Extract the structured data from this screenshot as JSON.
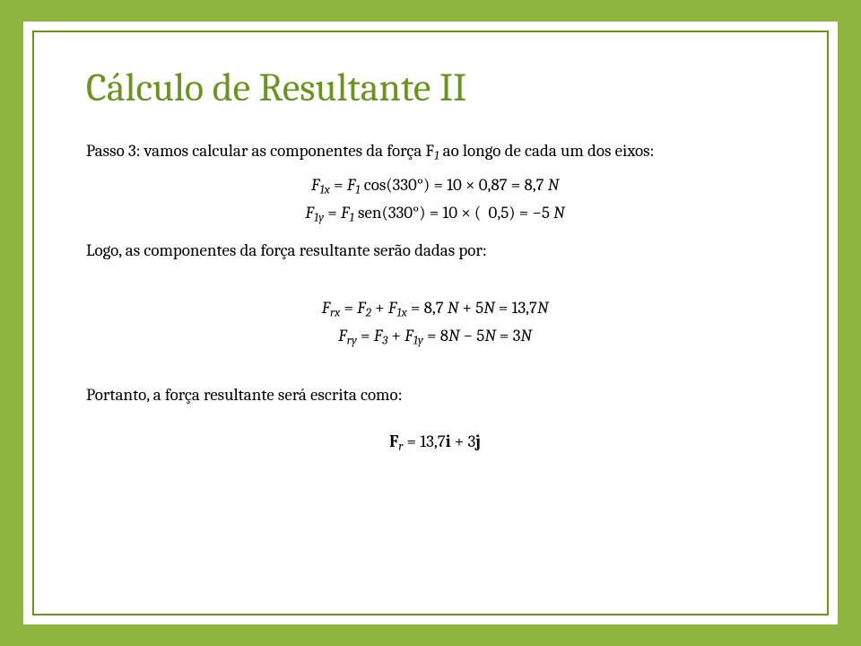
{
  "title": "Cálculo de Resultante II",
  "step_intro": "Passo 3: vamos calcular as componentes da força F₁ ao longo de cada um dos eixos:",
  "eq_f1x": "F₁ₓ = F₁ cos(330°) = 10 × 0,87 = 8,7 N",
  "eq_f1y": "F₁ᵧ = F₁ sen(330°) = 10 × (−0,5) = −5 N",
  "logo_text": "Logo, as componentes da força resultante serão dadas por:",
  "eq_frx": "Fᵣₓ = F₂ + F₁ₓ = 8,7 N + 5N = 13,7N",
  "eq_fry": "Fᵣᵧ = F₃ + F₁ᵧ = 8N − 5N = 3N",
  "portanto_text": "Portanto, a força resultante será escrita como:",
  "eq_final": "𝐅ᵣ = 13,7𝐢 + 3𝐣",
  "colors": {
    "accent": "#6b9320",
    "background": "#8cb53f",
    "page": "#ffffff",
    "text": "#000000"
  }
}
